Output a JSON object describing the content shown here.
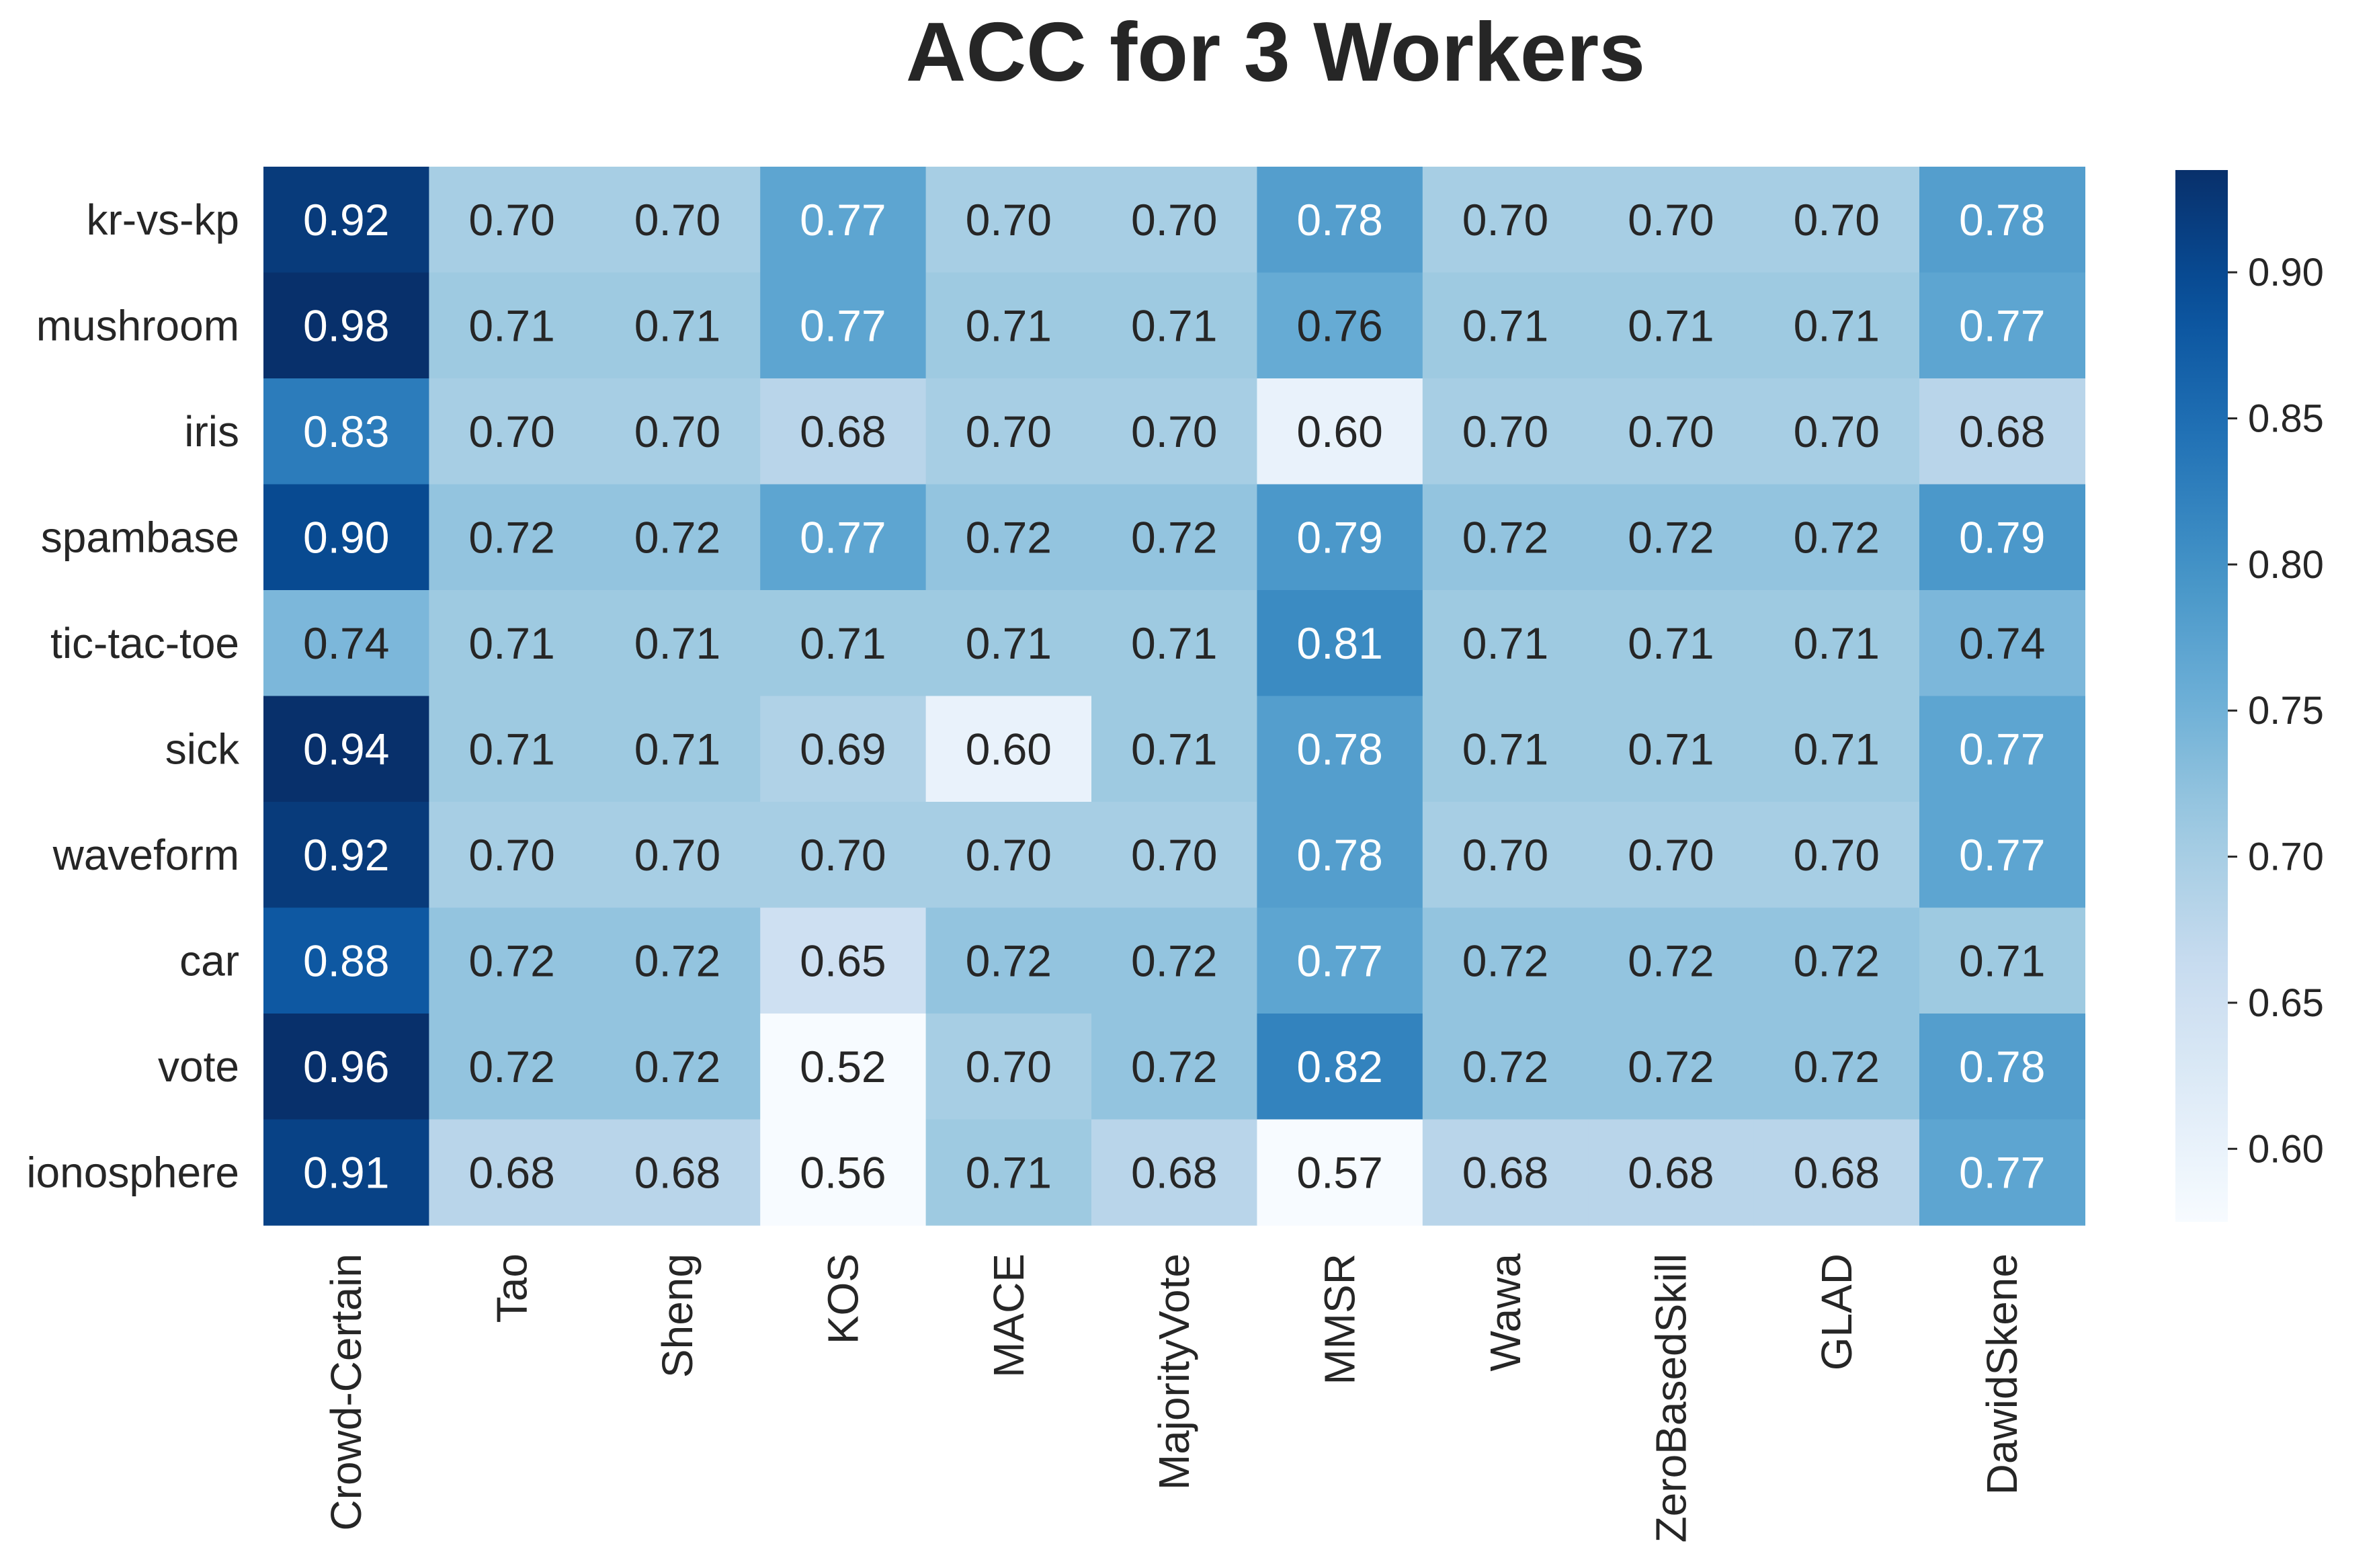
{
  "chart_data": {
    "type": "heatmap",
    "title": "ACC for 3 Workers",
    "rows": [
      "kr-vs-kp",
      "mushroom",
      "iris",
      "spambase",
      "tic-tac-toe",
      "sick",
      "waveform",
      "car",
      "vote",
      "ionosphere"
    ],
    "columns": [
      "Crowd-Certain",
      "Tao",
      "Sheng",
      "KOS",
      "MACE",
      "MajorityVote",
      "MMSR",
      "Wawa",
      "ZeroBasedSkill",
      "GLAD",
      "DawidSkene"
    ],
    "values": [
      [
        0.92,
        0.7,
        0.7,
        0.77,
        0.7,
        0.7,
        0.78,
        0.7,
        0.7,
        0.7,
        0.78
      ],
      [
        0.98,
        0.71,
        0.71,
        0.77,
        0.71,
        0.71,
        0.76,
        0.71,
        0.71,
        0.71,
        0.77
      ],
      [
        0.83,
        0.7,
        0.7,
        0.68,
        0.7,
        0.7,
        0.6,
        0.7,
        0.7,
        0.7,
        0.68
      ],
      [
        0.9,
        0.72,
        0.72,
        0.77,
        0.72,
        0.72,
        0.79,
        0.72,
        0.72,
        0.72,
        0.79
      ],
      [
        0.74,
        0.71,
        0.71,
        0.71,
        0.71,
        0.71,
        0.81,
        0.71,
        0.71,
        0.71,
        0.74
      ],
      [
        0.94,
        0.71,
        0.71,
        0.69,
        0.6,
        0.71,
        0.78,
        0.71,
        0.71,
        0.71,
        0.77
      ],
      [
        0.92,
        0.7,
        0.7,
        0.7,
        0.7,
        0.7,
        0.78,
        0.7,
        0.7,
        0.7,
        0.77
      ],
      [
        0.88,
        0.72,
        0.72,
        0.65,
        0.72,
        0.72,
        0.77,
        0.72,
        0.72,
        0.72,
        0.71
      ],
      [
        0.96,
        0.72,
        0.72,
        0.52,
        0.7,
        0.72,
        0.82,
        0.72,
        0.72,
        0.72,
        0.78
      ],
      [
        0.91,
        0.68,
        0.68,
        0.56,
        0.71,
        0.68,
        0.57,
        0.68,
        0.68,
        0.68,
        0.77
      ]
    ],
    "value_format": "0.00",
    "colormap": "Blues",
    "color_range": [
      0.575,
      0.935
    ],
    "colorbar_ticks": [
      "0.60",
      "0.65",
      "0.70",
      "0.75",
      "0.80",
      "0.85",
      "0.90"
    ],
    "legend": "colorbar-right"
  }
}
